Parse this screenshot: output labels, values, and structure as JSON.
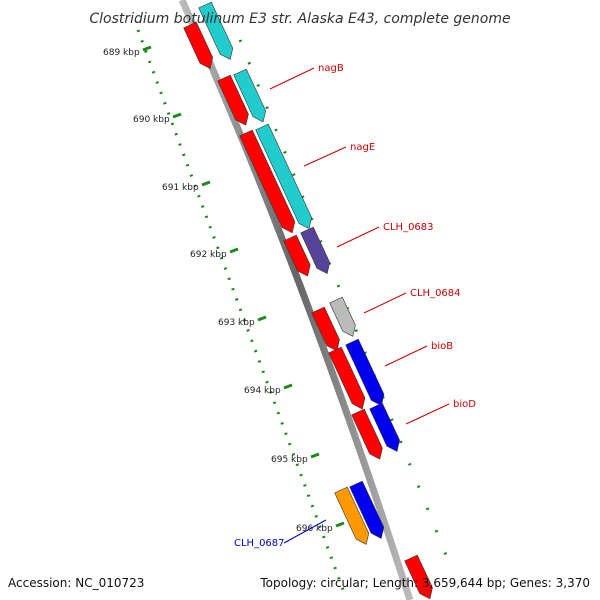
{
  "title": "Clostridium botulinum E3 str. Alaska E43, complete genome",
  "accession": "Accession: NC_010723",
  "summary": "Topology: circular; Length: 3,659,644 bp; Genes: 3,370",
  "ticks": [
    "689 kbp",
    "690 kbp",
    "691 kbp",
    "692 kbp",
    "693 kbp",
    "694 kbp",
    "695 kbp",
    "696 kbp"
  ],
  "gene_labels": [
    "nagB",
    "nagE",
    "CLH_0683",
    "CLH_0684",
    "bioB",
    "bioD",
    "CLH_0687"
  ],
  "colors": {
    "cds": "#ff0000",
    "cyan": "#22cccc",
    "purple": "#554499",
    "grey": "#bbbbbb",
    "blue": "#0000ee",
    "orange": "#ff9900",
    "label_red": "#cc0000",
    "label_blue": "#0000cc",
    "tick_green": "#1a8a1a",
    "backbone": "#888888"
  }
}
